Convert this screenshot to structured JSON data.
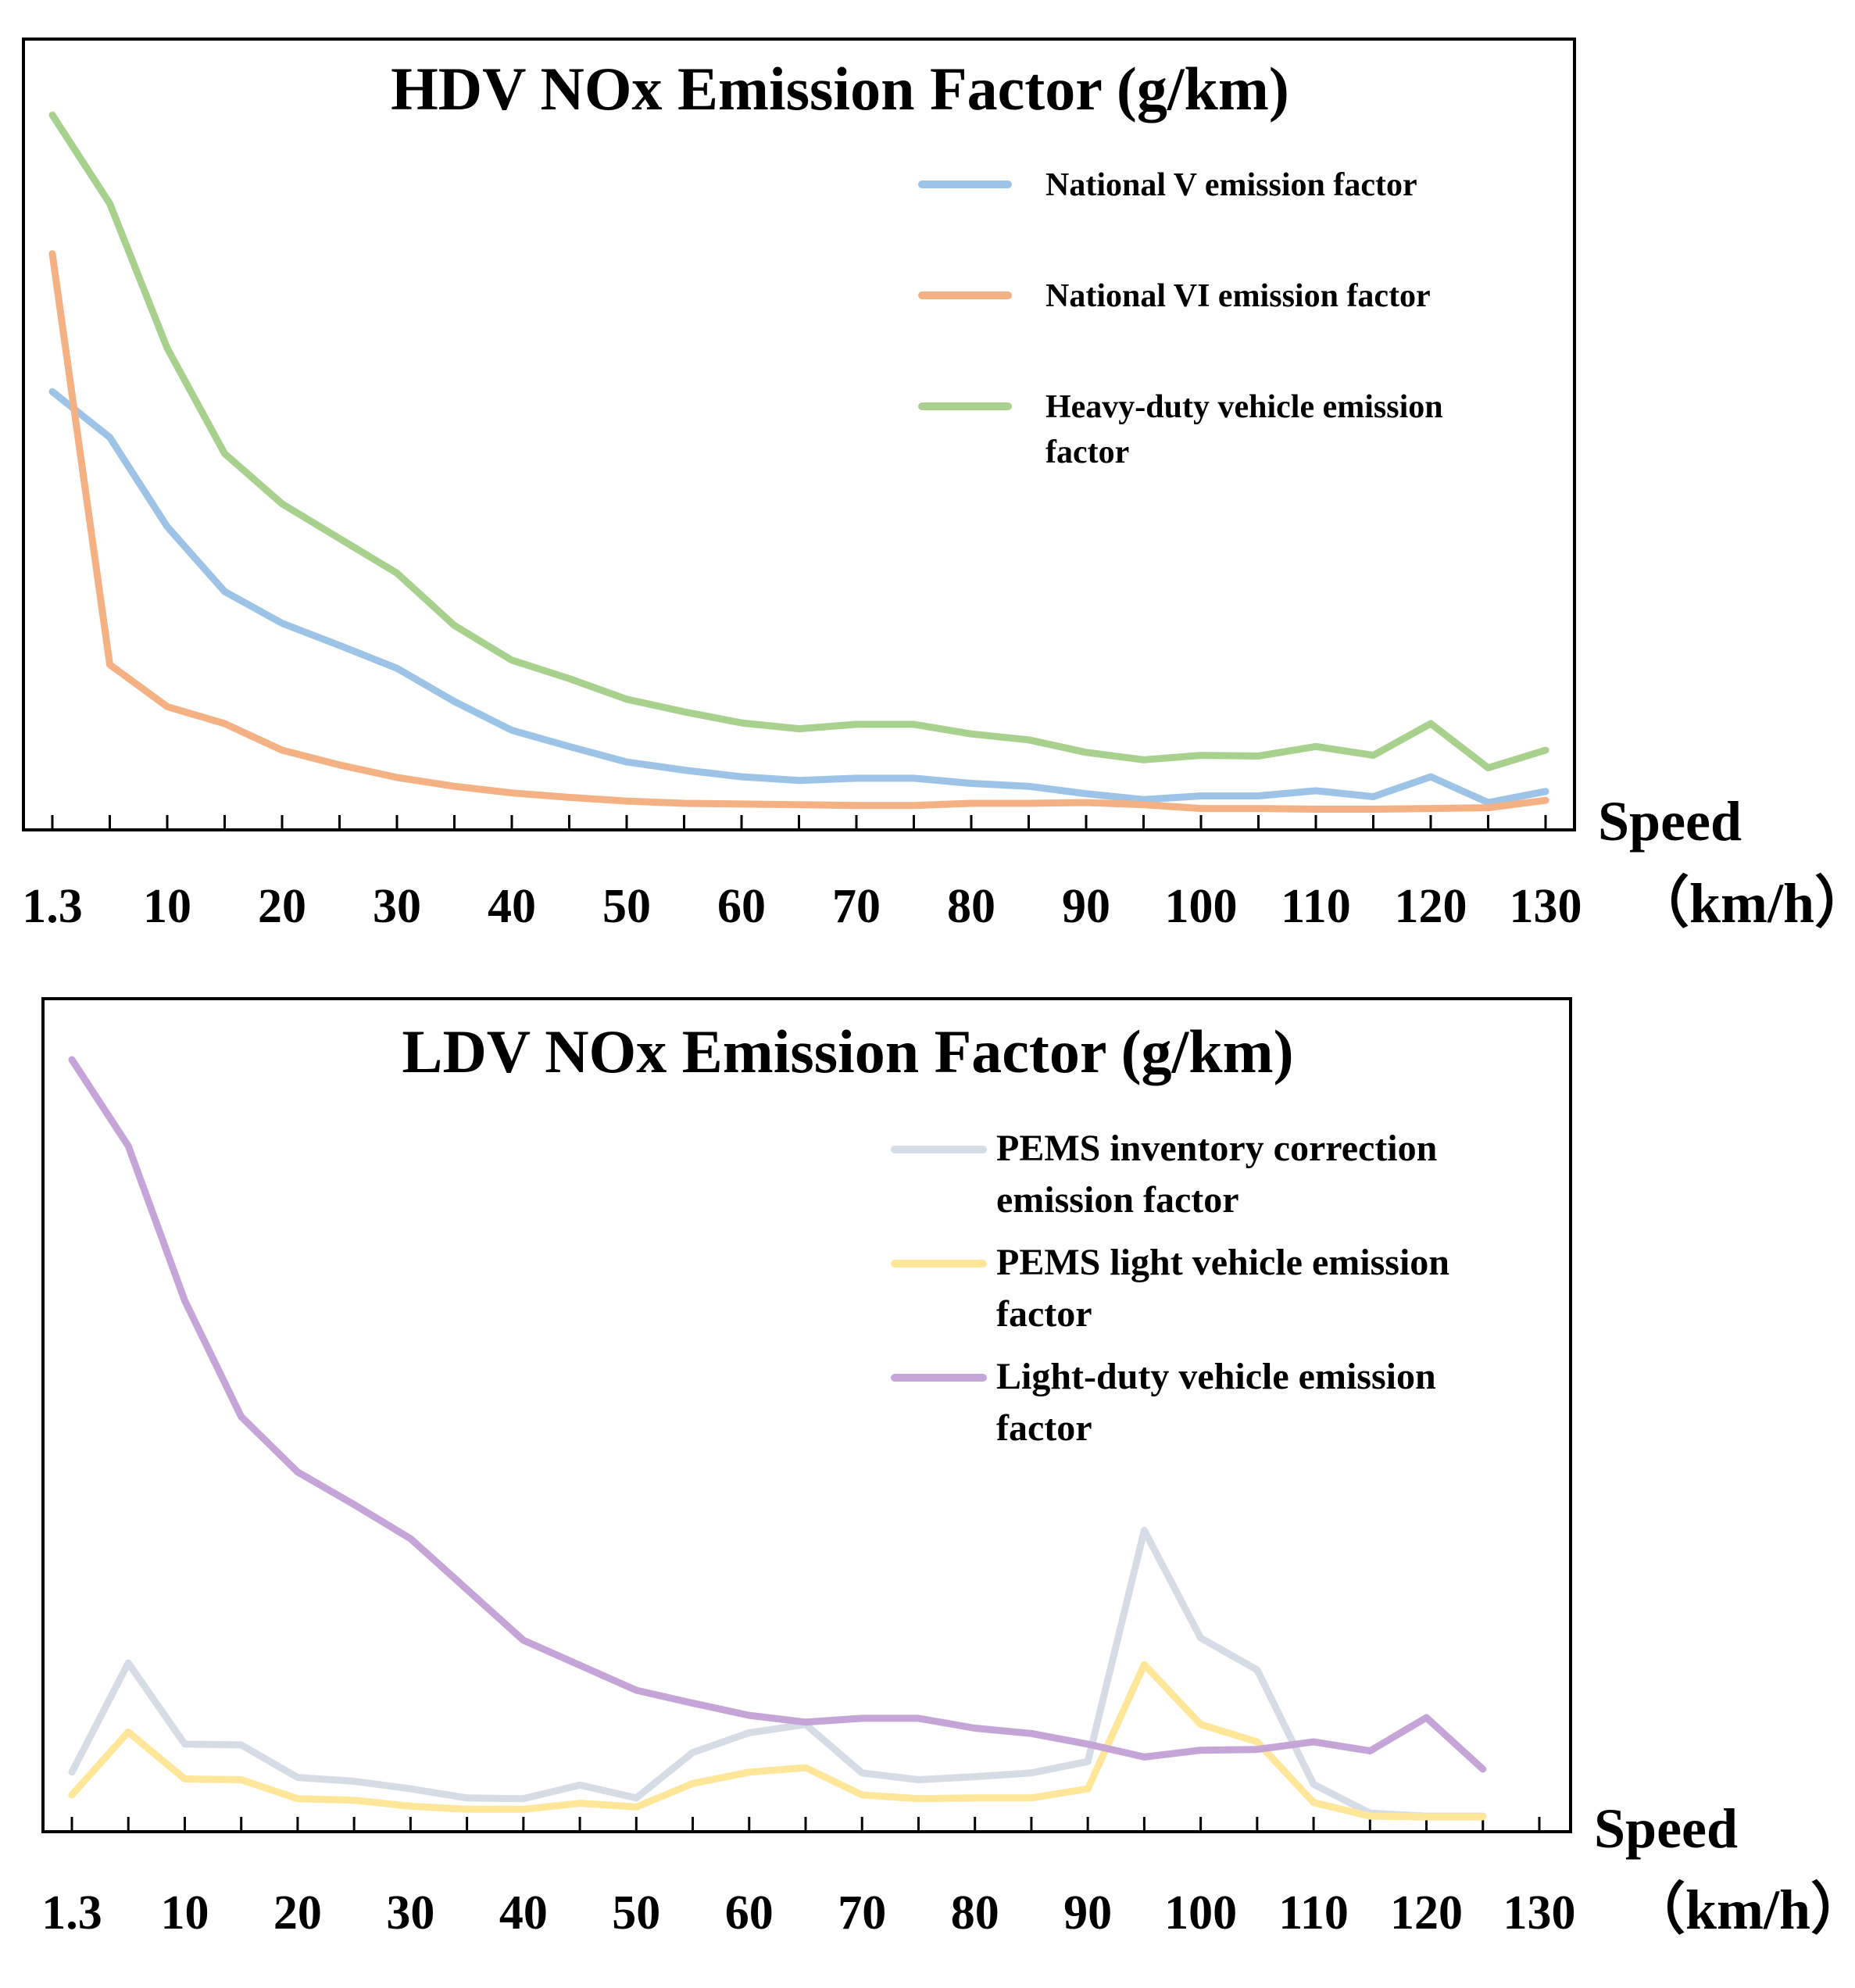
{
  "chart_data": [
    {
      "type": "line",
      "title": "HDV NOx Emission Factor (g/km)",
      "xlabel_line1": "Speed",
      "xlabel_line2": "（km/h）",
      "ylabel": "",
      "x": [
        1.3,
        5,
        10,
        15,
        20,
        25,
        30,
        35,
        40,
        45,
        50,
        55,
        60,
        65,
        70,
        75,
        80,
        85,
        90,
        95,
        100,
        105,
        110,
        115,
        120,
        125,
        130
      ],
      "tick_labels": [
        "1.3",
        "10",
        "20",
        "30",
        "40",
        "50",
        "60",
        "70",
        "80",
        "90",
        "100",
        "110",
        "120",
        "130"
      ],
      "ylim": [
        0,
        100
      ],
      "legend_position": "top-right",
      "series": [
        {
          "name": "National V emission factor",
          "name_lines": [
            "National V emission factor"
          ],
          "color": "#9dc3e6",
          "values": [
            57.5,
            51.3,
            39.2,
            30.4,
            26.1,
            23.1,
            20.0,
            15.5,
            11.6,
            9.4,
            7.3,
            6.2,
            5.3,
            4.8,
            5.1,
            5.1,
            4.4,
            4.0,
            3.0,
            2.2,
            2.7,
            2.7,
            3.4,
            2.6,
            5.3,
            1.8,
            3.3
          ]
        },
        {
          "name": "National VI emission factor",
          "name_lines": [
            "National VI emission factor"
          ],
          "color": "#f4b183",
          "values": [
            76.2,
            20.5,
            14.8,
            12.5,
            8.9,
            6.9,
            5.2,
            4.0,
            3.1,
            2.5,
            2.0,
            1.7,
            1.6,
            1.5,
            1.4,
            1.4,
            1.7,
            1.7,
            1.8,
            1.5,
            1.0,
            1.0,
            0.9,
            0.9,
            1.0,
            1.1,
            2.1
          ]
        },
        {
          "name": "Heavy-duty vehicle emission factor",
          "name_lines": [
            "Heavy-duty vehicle emission",
            "factor"
          ],
          "color": "#a9d18e",
          "values": [
            95.0,
            83.0,
            63.4,
            49.1,
            42.3,
            37.6,
            32.9,
            25.8,
            21.1,
            18.6,
            15.8,
            14.1,
            12.6,
            11.8,
            12.4,
            12.4,
            11.1,
            10.3,
            8.6,
            7.6,
            8.2,
            8.1,
            9.4,
            8.2,
            12.5,
            6.5,
            8.9
          ]
        }
      ]
    },
    {
      "type": "line",
      "title": "LDV NOx Emission Factor (g/km)",
      "xlabel_line1": "Speed",
      "xlabel_line2": "（km/h）",
      "ylabel": "",
      "x": [
        1.3,
        5,
        10,
        15,
        20,
        25,
        30,
        35,
        40,
        45,
        50,
        55,
        60,
        65,
        70,
        75,
        80,
        85,
        90,
        95,
        100,
        105,
        110,
        115,
        120,
        125
      ],
      "tick_labels": [
        "1.3",
        "10",
        "20",
        "30",
        "40",
        "50",
        "60",
        "70",
        "80",
        "90",
        "100",
        "110",
        "120",
        "130"
      ],
      "tick_values": [
        1.3,
        10,
        20,
        30,
        40,
        50,
        60,
        70,
        80,
        90,
        100,
        110,
        120,
        130
      ],
      "ylim": [
        0,
        100
      ],
      "legend_position": "top-right",
      "series": [
        {
          "name": "PEMS inventory correction emission factor",
          "name_lines": [
            "PEMS inventory correction",
            "emission factor"
          ],
          "color": "#d6dce5",
          "values": [
            6.0,
            20.4,
            9.7,
            9.6,
            5.3,
            4.8,
            3.8,
            2.6,
            2.5,
            4.3,
            2.6,
            8.6,
            11.2,
            12.3,
            5.9,
            5.0,
            5.4,
            5.9,
            7.4,
            37.9,
            23.7,
            19.5,
            4.4,
            0.6,
            0.2,
            0.2
          ]
        },
        {
          "name": "PEMS light vehicle emission factor",
          "name_lines": [
            "PEMS light vehicle emission",
            "factor"
          ],
          "color": "#ffe699",
          "values": [
            3.0,
            11.3,
            5.1,
            5.0,
            2.5,
            2.3,
            1.5,
            1.1,
            1.1,
            1.9,
            1.4,
            4.5,
            6.0,
            6.6,
            3.0,
            2.5,
            2.6,
            2.6,
            3.8,
            20.2,
            12.3,
            10.0,
            2.0,
            0.2,
            0.1,
            0.1
          ]
        },
        {
          "name": "Light-duty vehicle emission factor",
          "name_lines": [
            "Light-duty vehicle emission",
            "factor"
          ],
          "color": "#c5a5d8",
          "values": [
            100.0,
            88.6,
            68.2,
            52.9,
            45.6,
            41.3,
            36.8,
            30.1,
            23.4,
            20.1,
            16.8,
            15.1,
            13.5,
            12.6,
            13.1,
            13.1,
            11.8,
            11.1,
            9.7,
            8.0,
            8.9,
            9.0,
            10.0,
            8.8,
            13.2,
            6.4
          ]
        }
      ]
    }
  ]
}
